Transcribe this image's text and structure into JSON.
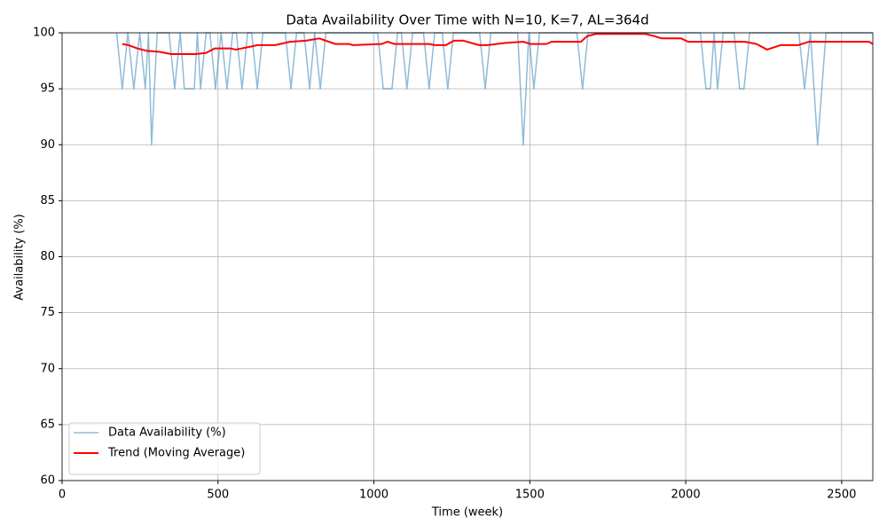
{
  "chart_data": {
    "type": "line",
    "title": "Data Availability Over Time with N=10, K=7, AL=364d",
    "x_label": "Time (week)",
    "y_label": "Availability (%)",
    "xlim": [
      0,
      2600
    ],
    "ylim": [
      60,
      100
    ],
    "xticks": [
      0,
      500,
      1000,
      1500,
      2000,
      2500
    ],
    "yticks": [
      60,
      65,
      70,
      75,
      80,
      85,
      90,
      95,
      100
    ],
    "grid": true,
    "legend": "lower left",
    "series": [
      {
        "name": "Data Availability (%)",
        "color": "#1f77b4",
        "opacity": 0.5,
        "line_width": 1.5,
        "x": [
          175,
          193,
          211,
          230,
          249,
          267,
          277,
          287,
          305,
          343,
          361,
          379,
          392,
          424,
          434,
          444,
          462,
          474,
          492,
          510,
          529,
          547,
          559,
          577,
          595,
          608,
          626,
          644,
          716,
          734,
          752,
          776,
          794,
          810,
          828,
          846,
          1012,
          1030,
          1058,
          1076,
          1088,
          1106,
          1124,
          1159,
          1177,
          1195,
          1219,
          1237,
          1255,
          1339,
          1357,
          1375,
          1461,
          1479,
          1497,
          1513,
          1531,
          1651,
          1669,
          1687,
          2047,
          2065,
          2079,
          2091,
          2102,
          2120,
          2155,
          2173,
          2187,
          2205,
          2363,
          2381,
          2400,
          2423,
          2450,
          2600
        ],
        "values": [
          100,
          95,
          100,
          95,
          100,
          95,
          100,
          90,
          100,
          100,
          95,
          100,
          95,
          95,
          100,
          95,
          100,
          100,
          95,
          100,
          95,
          100,
          100,
          95,
          100,
          100,
          95,
          100,
          100,
          95,
          100,
          100,
          95,
          100,
          95,
          100,
          100,
          95,
          95,
          100,
          100,
          95,
          100,
          100,
          95,
          100,
          100,
          95,
          100,
          100,
          95,
          100,
          100,
          90,
          100,
          95,
          100,
          100,
          95,
          100,
          100,
          95,
          95,
          100,
          95,
          100,
          100,
          95,
          95,
          100,
          100,
          95,
          100,
          90,
          100,
          100
        ]
      },
      {
        "name": "Trend (Moving Average)",
        "color": "#ff0000",
        "opacity": 1,
        "line_width": 2,
        "x": [
          193,
          213,
          242,
          270,
          313,
          350,
          427,
          461,
          489,
          540,
          557,
          611,
          626,
          683,
          731,
          782,
          825,
          876,
          919,
          933,
          1024,
          1044,
          1066,
          1177,
          1195,
          1231,
          1257,
          1286,
          1337,
          1365,
          1422,
          1479,
          1502,
          1553,
          1570,
          1664,
          1684,
          1712,
          1871,
          1900,
          1923,
          1985,
          2008,
          2190,
          2227,
          2261,
          2304,
          2361,
          2395,
          2588,
          2600
        ],
        "values": [
          99.0,
          98.9,
          98.6,
          98.4,
          98.3,
          98.1,
          98.1,
          98.2,
          98.6,
          98.6,
          98.5,
          98.8,
          98.9,
          98.9,
          99.2,
          99.3,
          99.5,
          99.0,
          99.0,
          98.9,
          99.0,
          99.2,
          99.0,
          99.0,
          98.9,
          98.9,
          99.3,
          99.3,
          98.9,
          98.9,
          99.1,
          99.2,
          99.0,
          99.0,
          99.2,
          99.2,
          99.7,
          99.9,
          99.9,
          99.7,
          99.5,
          99.5,
          99.2,
          99.2,
          99.0,
          98.5,
          98.9,
          98.9,
          99.2,
          99.2,
          99.0
        ]
      }
    ]
  }
}
